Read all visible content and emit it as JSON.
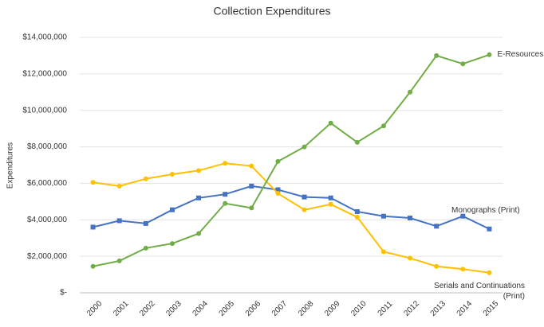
{
  "chart_data": {
    "type": "line",
    "title": "Collection Expenditures",
    "y_label": "Expenditures",
    "categories": [
      "2000",
      "2001",
      "2002",
      "2003",
      "2004",
      "2005",
      "2006",
      "2007",
      "2008",
      "2009",
      "2010",
      "2011",
      "2012",
      "2013",
      "2014",
      "2015"
    ],
    "series": [
      {
        "name": "Monographs (Print)",
        "color": "#4472c4",
        "marker": "square",
        "values": [
          3600000,
          3950000,
          3800000,
          4550000,
          5200000,
          5400000,
          5850000,
          5650000,
          5250000,
          5200000,
          4450000,
          4200000,
          4100000,
          3650000,
          4200000,
          3500000
        ]
      },
      {
        "name": "Serials and Continuations (Print)",
        "color": "#ffc000",
        "marker": "circle",
        "values": [
          6050000,
          5850000,
          6250000,
          6500000,
          6700000,
          7100000,
          6950000,
          5450000,
          4550000,
          4850000,
          4150000,
          2250000,
          1900000,
          1450000,
          1300000,
          1100000
        ]
      },
      {
        "name": "E-Resources",
        "color": "#70ad47",
        "marker": "circle",
        "values": [
          1450000,
          1750000,
          2450000,
          2700000,
          3250000,
          4900000,
          4650000,
          7200000,
          8000000,
          9300000,
          8250000,
          9150000,
          11000000,
          13000000,
          12550000,
          13050000
        ]
      }
    ],
    "ylim": [
      0,
      14000000
    ],
    "yticks": [
      {
        "value": 0,
        "label": "$-"
      },
      {
        "value": 2000000,
        "label": "$2,000,000"
      },
      {
        "value": 4000000,
        "label": "$4,000,000"
      },
      {
        "value": 6000000,
        "label": "$6,000,000"
      },
      {
        "value": 8000000,
        "label": "$8,000,000"
      },
      {
        "value": 10000000,
        "label": "$10,000,000"
      },
      {
        "value": 12000000,
        "label": "$12,000,000"
      },
      {
        "value": 14000000,
        "label": "$14,000,000"
      }
    ],
    "grid": true
  }
}
